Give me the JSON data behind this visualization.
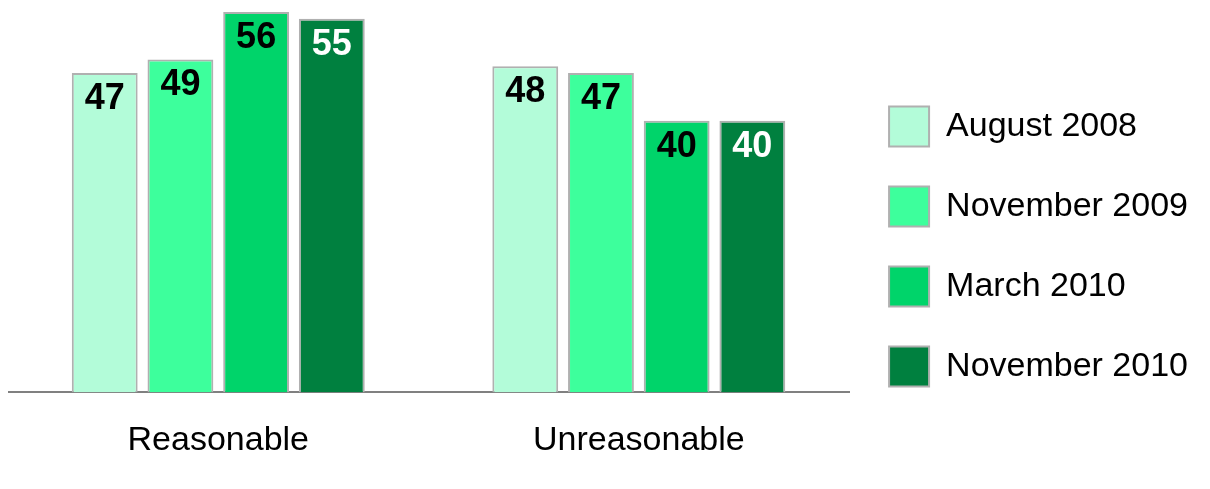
{
  "chart_data": {
    "type": "bar",
    "categories": [
      "Reasonable",
      "Unreasonable"
    ],
    "series": [
      {
        "name": "August 2008",
        "color": "#b3fcd9",
        "values": [
          47,
          48
        ]
      },
      {
        "name": "November 2009",
        "color": "#3dff9c",
        "values": [
          49,
          47
        ]
      },
      {
        "name": "March 2010",
        "color": "#00d46a",
        "values": [
          56,
          40
        ]
      },
      {
        "name": "November 2010",
        "color": "#00803f",
        "values": [
          55,
          40
        ]
      }
    ],
    "data_labels": true,
    "legend": "right",
    "grid": false
  }
}
